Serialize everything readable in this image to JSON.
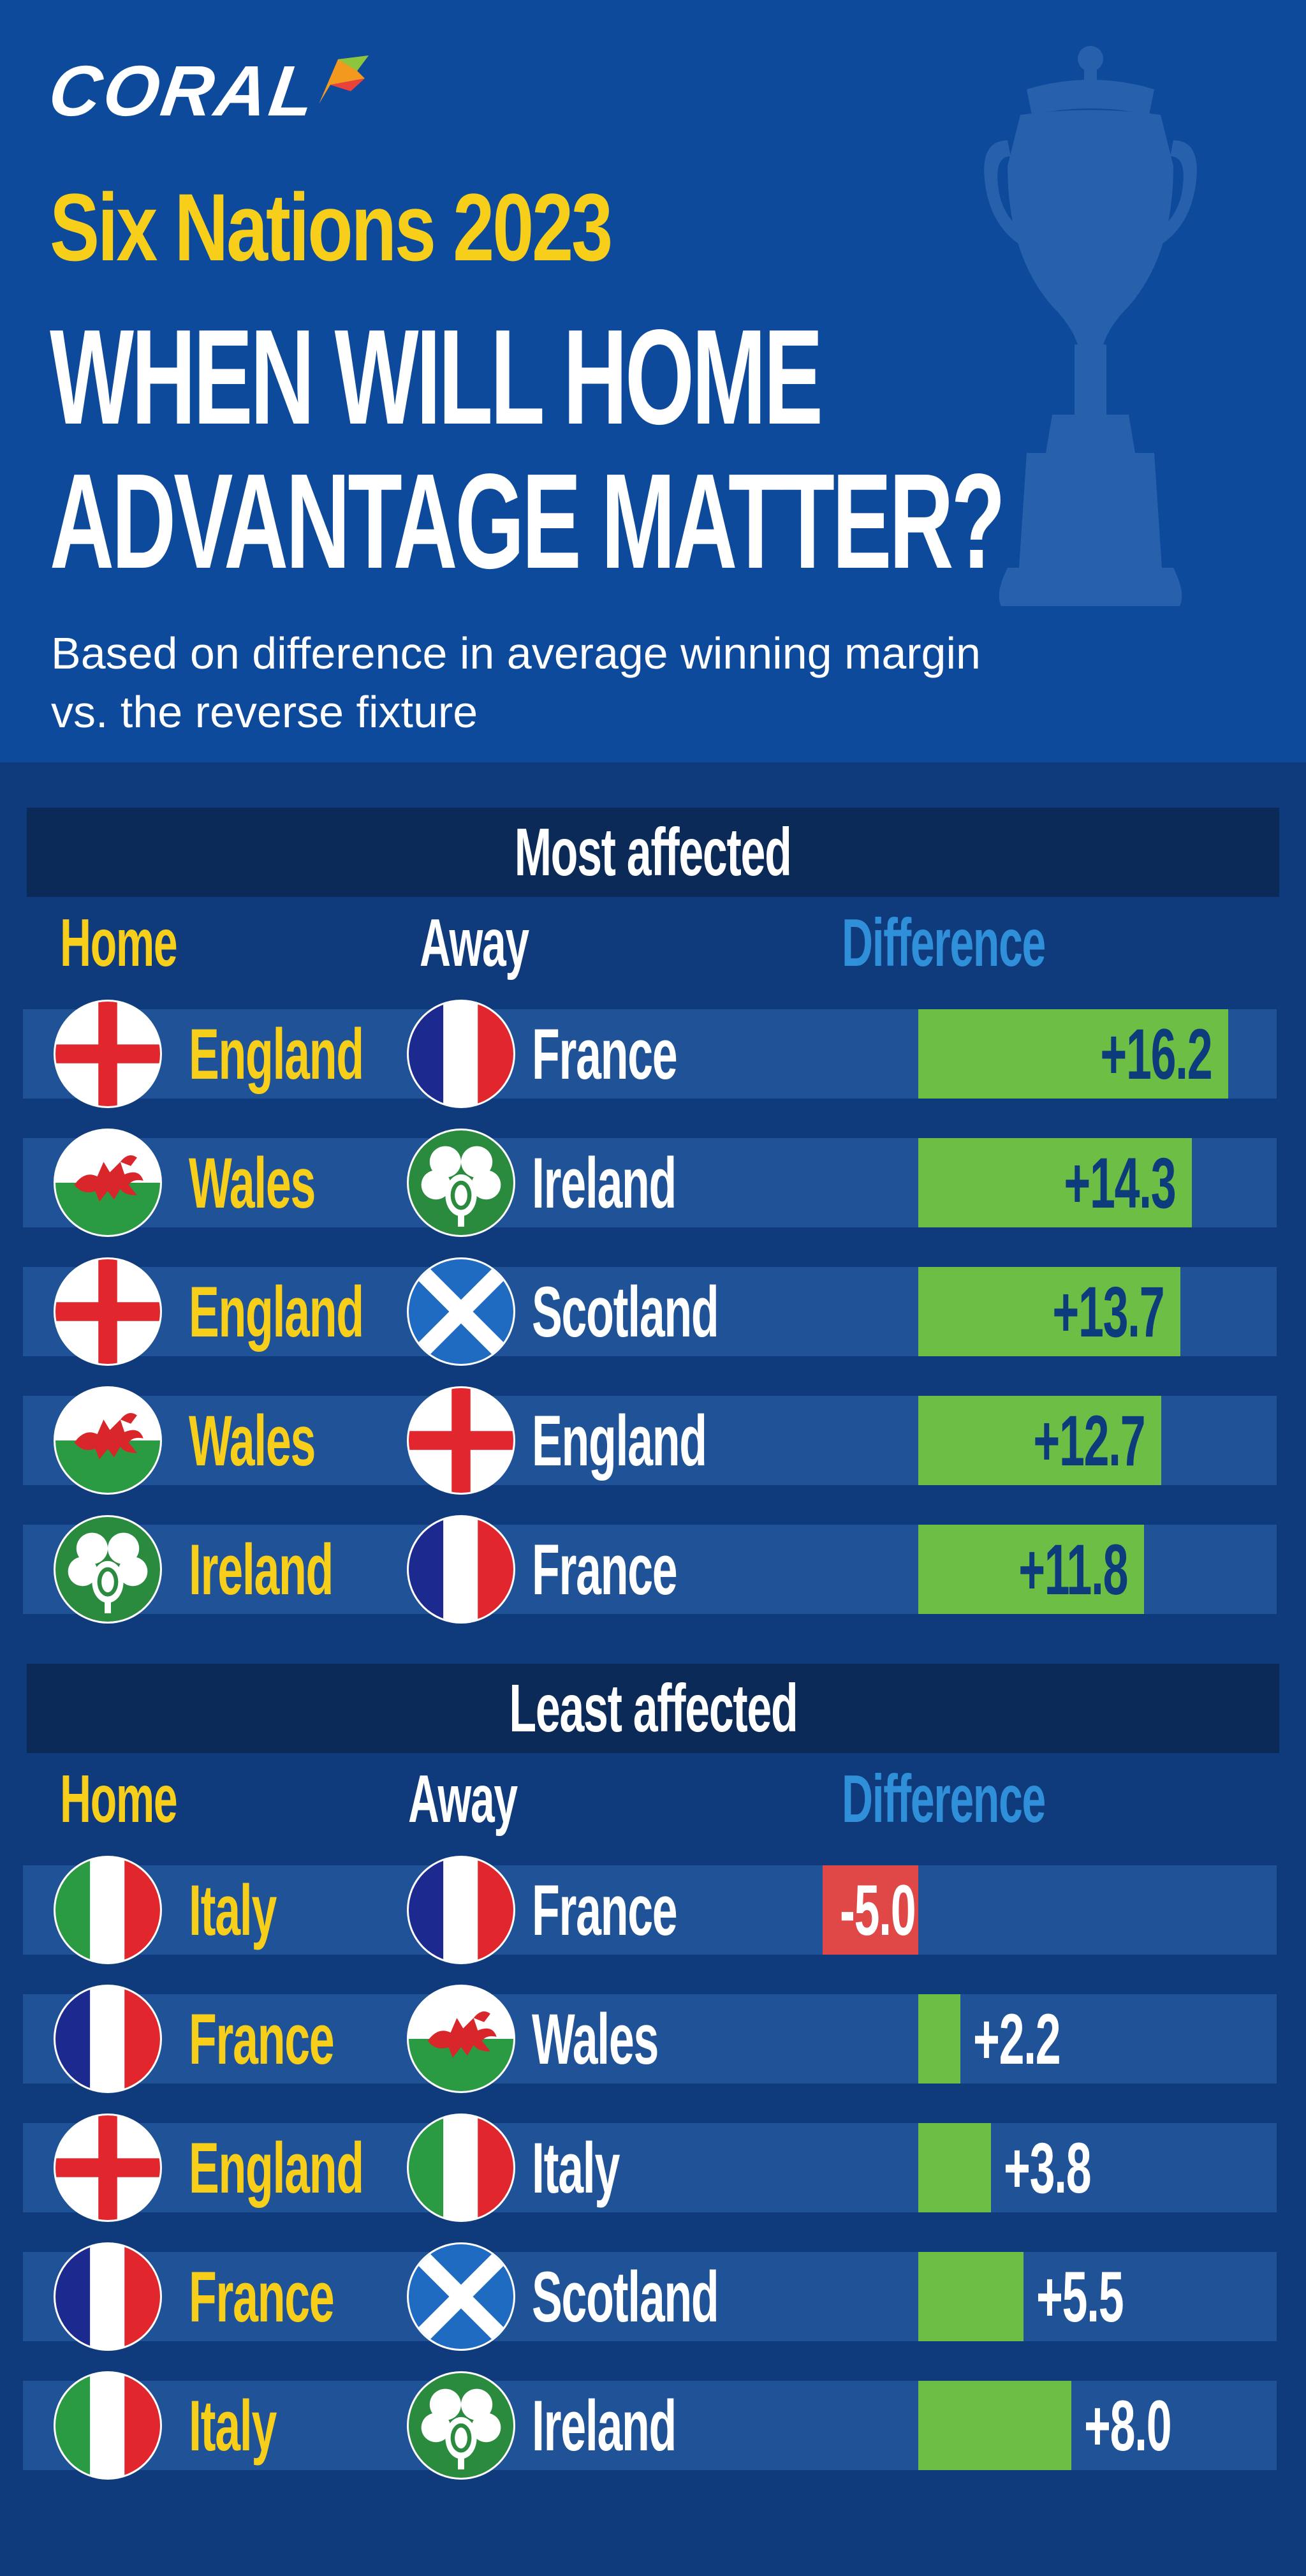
{
  "header": {
    "brand": "CORAL",
    "subtitle": "Six Nations 2023",
    "title_line1": "WHEN WILL HOME",
    "title_line2": "ADVANTAGE MATTER?",
    "description_line1": "Based on difference in average winning margin",
    "description_line2": "vs. the reverse fixture"
  },
  "colors": {
    "background": "#0f3b7c",
    "header": "#0d4a9c",
    "home_text": "#f7cf1b",
    "diff_header": "#2f8fd8",
    "positive_bar": "#6dbe45",
    "negative_bar": "#e04848"
  },
  "columns": {
    "home": "Home",
    "away": "Away",
    "difference": "Difference"
  },
  "chart_data": [
    {
      "type": "bar",
      "title": "Most affected",
      "rows": [
        {
          "home": "England",
          "home_flag": "england",
          "away": "France",
          "away_flag": "france",
          "value": 16.2,
          "label": "+16.2"
        },
        {
          "home": "Wales",
          "home_flag": "wales",
          "away": "Ireland",
          "away_flag": "ireland",
          "value": 14.3,
          "label": "+14.3"
        },
        {
          "home": "England",
          "home_flag": "england",
          "away": "Scotland",
          "away_flag": "scotland",
          "value": 13.7,
          "label": "+13.7"
        },
        {
          "home": "Wales",
          "home_flag": "wales",
          "away": "England",
          "away_flag": "england",
          "value": 12.7,
          "label": "+12.7"
        },
        {
          "home": "Ireland",
          "home_flag": "ireland",
          "away": "France",
          "away_flag": "france",
          "value": 11.8,
          "label": "+11.8"
        }
      ]
    },
    {
      "type": "bar",
      "title": "Least affected",
      "rows": [
        {
          "home": "Italy",
          "home_flag": "italy",
          "away": "France",
          "away_flag": "france",
          "value": -5.0,
          "label": "-5.0"
        },
        {
          "home": "France",
          "home_flag": "france",
          "away": "Wales",
          "away_flag": "wales",
          "value": 2.2,
          "label": "+2.2"
        },
        {
          "home": "England",
          "home_flag": "england",
          "away": "Italy",
          "away_flag": "italy",
          "value": 3.8,
          "label": "+3.8"
        },
        {
          "home": "France",
          "home_flag": "france",
          "away": "Scotland",
          "away_flag": "scotland",
          "value": 5.5,
          "label": "+5.5"
        },
        {
          "home": "Italy",
          "home_flag": "italy",
          "away": "Ireland",
          "away_flag": "ireland",
          "value": 8.0,
          "label": "+8.0"
        }
      ]
    }
  ]
}
